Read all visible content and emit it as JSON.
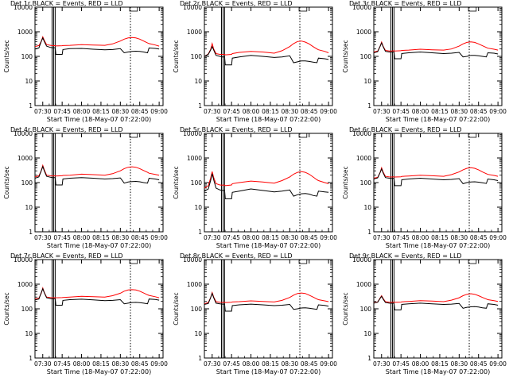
{
  "chart_data": {
    "type": "line",
    "scale": "log",
    "ylim": [
      1,
      10000
    ],
    "ylabel": "Counts/sec",
    "xlabel": "Start Time (18-May-07 07:22:00)",
    "xlim": [
      7.4,
      9.05
    ],
    "x_ticks": [
      7.5,
      7.75,
      8.0,
      8.25,
      8.5,
      8.75,
      9.0
    ],
    "x_tick_labels": [
      "07:30",
      "07:45",
      "08:00",
      "08:15",
      "08:30",
      "08:45",
      "09:00"
    ],
    "y_ticks": [
      1,
      10,
      100,
      1000,
      10000
    ],
    "y_tick_labels": [
      "1",
      "10",
      "100",
      "1000",
      "10000"
    ],
    "colors": {
      "events": "#000000",
      "lld": "#ff0000"
    },
    "series_names": [
      "Events",
      "LLD"
    ],
    "vlines": [
      7.62,
      7.64,
      7.66,
      8.63
    ],
    "attenuator_box": [
      8.62,
      8.72
    ],
    "x": [
      7.4,
      7.45,
      7.48,
      7.5,
      7.52,
      7.55,
      7.6,
      7.63,
      7.66,
      7.67,
      7.75,
      7.76,
      7.85,
      8.0,
      8.15,
      8.3,
      8.4,
      8.5,
      8.55,
      8.6,
      8.65,
      8.7,
      8.75,
      8.8,
      8.85,
      8.87,
      8.95,
      9.0
    ],
    "panels": [
      {
        "title": "Det 1r BLACK = Events, RED = LLD",
        "events": [
          200,
          220,
          400,
          560,
          400,
          260,
          230,
          225,
          225,
          120,
          120,
          190,
          205,
          210,
          195,
          185,
          190,
          205,
          140,
          150,
          160,
          162,
          158,
          150,
          140,
          220,
          210,
          200
        ],
        "lld": [
          250,
          275,
          400,
          620,
          450,
          300,
          280,
          270,
          275,
          265,
          270,
          275,
          280,
          300,
          290,
          280,
          320,
          420,
          500,
          560,
          580,
          560,
          500,
          420,
          350,
          330,
          290,
          260
        ]
      },
      {
        "title": "Det 2r BLACK = Events, RED = LLD",
        "events": [
          100,
          120,
          180,
          250,
          180,
          110,
          100,
          95,
          95,
          45,
          45,
          85,
          95,
          110,
          100,
          90,
          95,
          105,
          55,
          60,
          65,
          65,
          62,
          58,
          55,
          85,
          80,
          75
        ],
        "lld": [
          100,
          125,
          190,
          330,
          200,
          130,
          120,
          120,
          120,
          115,
          120,
          130,
          145,
          160,
          150,
          135,
          170,
          250,
          330,
          400,
          420,
          380,
          320,
          250,
          200,
          185,
          160,
          140
        ]
      },
      {
        "title": "Det 3r BLACK = Events, RED = LLD",
        "events": [
          140,
          155,
          250,
          350,
          250,
          160,
          150,
          150,
          150,
          80,
          80,
          130,
          140,
          150,
          140,
          130,
          135,
          145,
          95,
          100,
          110,
          110,
          105,
          100,
          95,
          140,
          135,
          125
        ],
        "lld": [
          150,
          165,
          250,
          380,
          260,
          175,
          165,
          165,
          170,
          165,
          170,
          175,
          180,
          195,
          185,
          180,
          200,
          260,
          320,
          370,
          390,
          370,
          320,
          270,
          230,
          215,
          195,
          180
        ]
      },
      {
        "title": "Det 4r BLACK = Events, RED = LLD",
        "events": [
          150,
          170,
          300,
          450,
          300,
          180,
          165,
          160,
          160,
          80,
          80,
          140,
          150,
          160,
          150,
          140,
          145,
          155,
          95,
          105,
          110,
          112,
          108,
          100,
          95,
          150,
          140,
          130
        ],
        "lld": [
          170,
          190,
          300,
          500,
          330,
          200,
          190,
          185,
          190,
          185,
          190,
          195,
          200,
          220,
          210,
          200,
          230,
          300,
          370,
          420,
          440,
          420,
          370,
          310,
          260,
          240,
          215,
          200
        ]
      },
      {
        "title": "Det 5r BLACK = Events, RED = LLD",
        "events": [
          45,
          55,
          120,
          230,
          130,
          60,
          50,
          48,
          48,
          22,
          22,
          40,
          45,
          55,
          48,
          42,
          45,
          50,
          28,
          32,
          35,
          36,
          34,
          30,
          28,
          45,
          42,
          40
        ],
        "lld": [
          60,
          75,
          150,
          280,
          160,
          90,
          80,
          78,
          80,
          75,
          80,
          90,
          100,
          115,
          105,
          95,
          120,
          170,
          220,
          260,
          280,
          260,
          220,
          170,
          130,
          120,
          100,
          90
        ]
      },
      {
        "title": "Det 6r BLACK = Events, RED = LLD",
        "events": [
          140,
          155,
          250,
          360,
          250,
          160,
          150,
          148,
          148,
          75,
          75,
          130,
          140,
          150,
          140,
          130,
          135,
          145,
          90,
          100,
          105,
          108,
          104,
          98,
          92,
          140,
          130,
          120
        ],
        "lld": [
          150,
          165,
          250,
          400,
          270,
          180,
          170,
          168,
          172,
          168,
          172,
          178,
          185,
          200,
          190,
          180,
          210,
          270,
          330,
          380,
          400,
          380,
          330,
          270,
          230,
          215,
          195,
          180
        ]
      },
      {
        "title": "Det 7r BLACK = Events, RED = LLD",
        "events": [
          230,
          250,
          450,
          650,
          450,
          280,
          260,
          255,
          255,
          140,
          140,
          220,
          235,
          245,
          230,
          215,
          220,
          235,
          160,
          170,
          180,
          182,
          178,
          170,
          160,
          250,
          240,
          225
        ],
        "lld": [
          250,
          270,
          420,
          700,
          460,
          300,
          285,
          280,
          285,
          280,
          285,
          290,
          300,
          320,
          310,
          300,
          340,
          430,
          520,
          580,
          600,
          580,
          520,
          440,
          370,
          350,
          310,
          280
        ]
      },
      {
        "title": "Det 8r BLACK = Events, RED = LLD",
        "events": [
          150,
          165,
          280,
          420,
          280,
          170,
          160,
          155,
          155,
          80,
          80,
          135,
          145,
          155,
          145,
          135,
          140,
          150,
          95,
          100,
          108,
          110,
          106,
          100,
          95,
          145,
          138,
          128
        ],
        "lld": [
          160,
          180,
          280,
          460,
          300,
          195,
          185,
          180,
          185,
          180,
          185,
          190,
          195,
          210,
          200,
          190,
          220,
          290,
          360,
          420,
          440,
          420,
          360,
          300,
          250,
          235,
          210,
          195
        ]
      },
      {
        "title": "Det 9r BLACK = Events, RED = LLD",
        "events": [
          170,
          185,
          260,
          320,
          250,
          180,
          170,
          168,
          168,
          90,
          90,
          150,
          160,
          170,
          160,
          150,
          155,
          165,
          105,
          115,
          120,
          122,
          118,
          110,
          105,
          160,
          150,
          140
        ],
        "lld": [
          175,
          190,
          270,
          340,
          265,
          195,
          185,
          183,
          187,
          183,
          187,
          192,
          200,
          215,
          205,
          195,
          225,
          280,
          340,
          390,
          410,
          390,
          340,
          290,
          250,
          235,
          215,
          200
        ]
      }
    ]
  }
}
